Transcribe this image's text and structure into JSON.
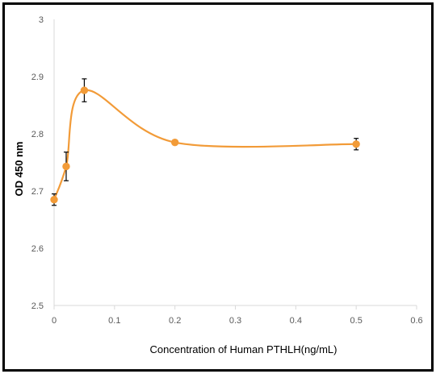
{
  "chart_data": {
    "type": "scatter",
    "title": "",
    "xlabel": "Concentration of Human PTHLH(ng/mL)",
    "ylabel": "OD 450 nm",
    "xlim": [
      0,
      0.6
    ],
    "ylim": [
      2.5,
      3.0
    ],
    "x_ticks": [
      "0",
      "0.1",
      "0.2",
      "0.3",
      "0.4",
      "0.5",
      "0.6"
    ],
    "y_ticks": [
      "2.5",
      "2.6",
      "2.7",
      "2.8",
      "2.9",
      "3"
    ],
    "grid": false,
    "legend": "none",
    "series": [
      {
        "smooth_line": true,
        "x": [
          0,
          0.02,
          0.05,
          0.2,
          0.5
        ],
        "y": [
          2.685,
          2.743,
          2.876,
          2.785,
          2.782
        ],
        "err": [
          0.01,
          0.025,
          0.02,
          0.004,
          0.01
        ]
      }
    ],
    "colors": {
      "series": "#F29B38",
      "axis": "#000000",
      "error_bar": "#000000"
    }
  }
}
